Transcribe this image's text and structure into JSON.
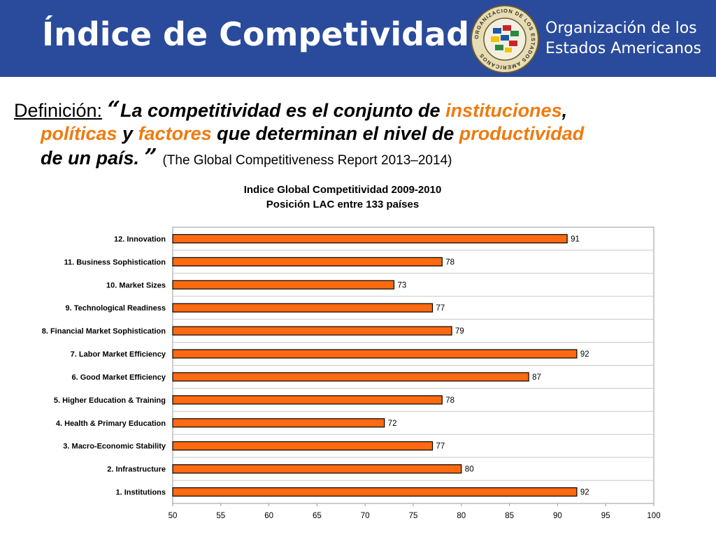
{
  "header": {
    "title": "Índice de Competividad",
    "org_line1": "Organización de los",
    "org_line2": "Estados Americanos",
    "seal_text": "ORGANIZACION DE LOS ESTADOS AMERICANOS"
  },
  "definition": {
    "label": "Definición:",
    "open_quote": "“",
    "t1": "La competitividad es el conjunto de ",
    "h1": "instituciones",
    "t2": ",",
    "h2": "políticas",
    "t3": " y ",
    "h3": "factores",
    "t4": " que determinan el nivel de ",
    "h4": "productividad",
    "t5": "de un país. ",
    "close_quote": "”",
    "source": "(The Global Competitiveness Report 2013–2014)"
  },
  "colors": {
    "header_bg": "#2a4b9b",
    "highlight": "#f07a10",
    "bar_fill": "#ff6a10",
    "bar_stroke": "#000000"
  },
  "chart_data": {
    "type": "bar",
    "orientation": "horizontal",
    "title": "Indice Global Competitividad 2009-2010",
    "subtitle": "Posición LAC entre 133 países",
    "categories": [
      "12. Innovation",
      "11. Business Sophistication",
      "10. Market Sizes",
      "9. Technological Readiness",
      "8. Financial Market Sophistication",
      "7. Labor Market Efficiency",
      "6. Good Market Efficiency",
      "5. Higher Education & Training",
      "4. Health & Primary Education",
      "3. Macro-Economic Stability",
      "2. Infrastructure",
      "1. Institutions"
    ],
    "values": [
      91,
      78,
      73,
      77,
      79,
      92,
      87,
      78,
      72,
      77,
      80,
      92
    ],
    "xlim": [
      50,
      100
    ],
    "xticks": [
      50,
      55,
      60,
      65,
      70,
      75,
      80,
      85,
      90,
      95,
      100
    ],
    "grid": "horizontal category separators",
    "data_labels": true
  }
}
